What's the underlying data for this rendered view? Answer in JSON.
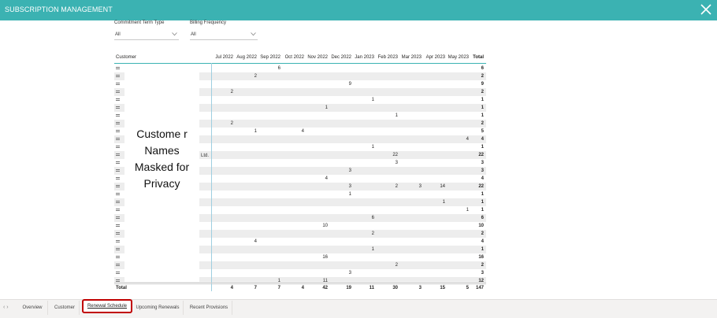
{
  "header": {
    "title": "SUBSCRIPTION MANAGEMENT",
    "close_icon": "close-icon"
  },
  "filters": [
    {
      "label": "Commitment Term Type",
      "value": "All"
    },
    {
      "label": "Billing Frequency",
      "value": "All"
    }
  ],
  "table": {
    "headers": [
      "Customer",
      "Jul 2022",
      "Aug 2022",
      "Sep 2022",
      "Oct 2022",
      "Nov 2022",
      "Dec 2022",
      "Jan 2023",
      "Feb 2023",
      "Mar 2023",
      "Apr 2023",
      "May 2023",
      "Total"
    ],
    "rows": [
      [
        "",
        "",
        "6",
        "",
        "",
        "",
        "",
        "",
        "",
        "",
        "",
        "6"
      ],
      [
        "",
        "2",
        "",
        "",
        "",
        "",
        "",
        "",
        "",
        "",
        "",
        "2"
      ],
      [
        "",
        "",
        "",
        "",
        "",
        "9",
        "",
        "",
        "",
        "",
        "",
        "9"
      ],
      [
        "2",
        "",
        "",
        "",
        "",
        "",
        "",
        "",
        "",
        "",
        "",
        "2"
      ],
      [
        "",
        "",
        "",
        "",
        "",
        "",
        "1",
        "",
        "",
        "",
        "",
        "1"
      ],
      [
        "",
        "",
        "",
        "",
        "1",
        "",
        "",
        "",
        "",
        "",
        "",
        "1"
      ],
      [
        "",
        "",
        "",
        "",
        "",
        "",
        "",
        "1",
        "",
        "",
        "",
        "1"
      ],
      [
        "2",
        "",
        "",
        "",
        "",
        "",
        "",
        "",
        "",
        "",
        "",
        "2"
      ],
      [
        "",
        "1",
        "",
        "4",
        "",
        "",
        "",
        "",
        "",
        "",
        "",
        "5"
      ],
      [
        "",
        "",
        "",
        "",
        "",
        "",
        "",
        "",
        "",
        "",
        "4",
        "4"
      ],
      [
        "",
        "",
        "",
        "",
        "",
        "",
        "1",
        "",
        "",
        "",
        "",
        "1"
      ],
      [
        "",
        "",
        "",
        "",
        "",
        "",
        "",
        "22",
        "",
        "",
        "",
        "22"
      ],
      [
        "",
        "",
        "",
        "",
        "",
        "",
        "",
        "3",
        "",
        "",
        "",
        "3"
      ],
      [
        "",
        "",
        "",
        "",
        "",
        "3",
        "",
        "",
        "",
        "",
        "",
        "3"
      ],
      [
        "",
        "",
        "",
        "",
        "4",
        "",
        "",
        "",
        "",
        "",
        "",
        "4"
      ],
      [
        "",
        "",
        "",
        "",
        "",
        "3",
        "",
        "2",
        "3",
        "14",
        "",
        "22"
      ],
      [
        "",
        "",
        "",
        "",
        "",
        "1",
        "",
        "",
        "",
        "",
        "",
        "1"
      ],
      [
        "",
        "",
        "",
        "",
        "",
        "",
        "",
        "",
        "",
        "1",
        "",
        "1"
      ],
      [
        "",
        "",
        "",
        "",
        "",
        "",
        "",
        "",
        "",
        "",
        "1",
        "1"
      ],
      [
        "",
        "",
        "",
        "",
        "",
        "",
        "6",
        "",
        "",
        "",
        "",
        "6"
      ],
      [
        "",
        "",
        "",
        "",
        "10",
        "",
        "",
        "",
        "",
        "",
        "",
        "10"
      ],
      [
        "",
        "",
        "",
        "",
        "",
        "",
        "2",
        "",
        "",
        "",
        "",
        "2"
      ],
      [
        "",
        "4",
        "",
        "",
        "",
        "",
        "",
        "",
        "",
        "",
        "",
        "4"
      ],
      [
        "",
        "",
        "",
        "",
        "",
        "",
        "1",
        "",
        "",
        "",
        "",
        "1"
      ],
      [
        "",
        "",
        "",
        "",
        "16",
        "",
        "",
        "",
        "",
        "",
        "",
        "16"
      ],
      [
        "",
        "",
        "",
        "",
        "",
        "",
        "",
        "2",
        "",
        "",
        "",
        "2"
      ],
      [
        "",
        "",
        "",
        "",
        "",
        "3",
        "",
        "",
        "",
        "",
        "",
        "3"
      ],
      [
        "",
        "",
        "1",
        "",
        "11",
        "",
        "",
        "",
        "",
        "",
        "",
        "12"
      ]
    ],
    "partial_customer_text": "Ltd.",
    "total_label": "Total",
    "totals": [
      "4",
      "7",
      "7",
      "4",
      "42",
      "19",
      "11",
      "30",
      "3",
      "15",
      "5",
      "147"
    ]
  },
  "mask_text": "Custome r Names Masked for Privacy",
  "tabs": [
    "Overview",
    "Customer",
    "Renewal Schedule",
    "Upcoming Renewals",
    "Recent Provisions"
  ],
  "active_tab": "Renewal Schedule",
  "colors": {
    "header_bg": "#3bb2b2",
    "active_tab_outline": "#c00000"
  }
}
